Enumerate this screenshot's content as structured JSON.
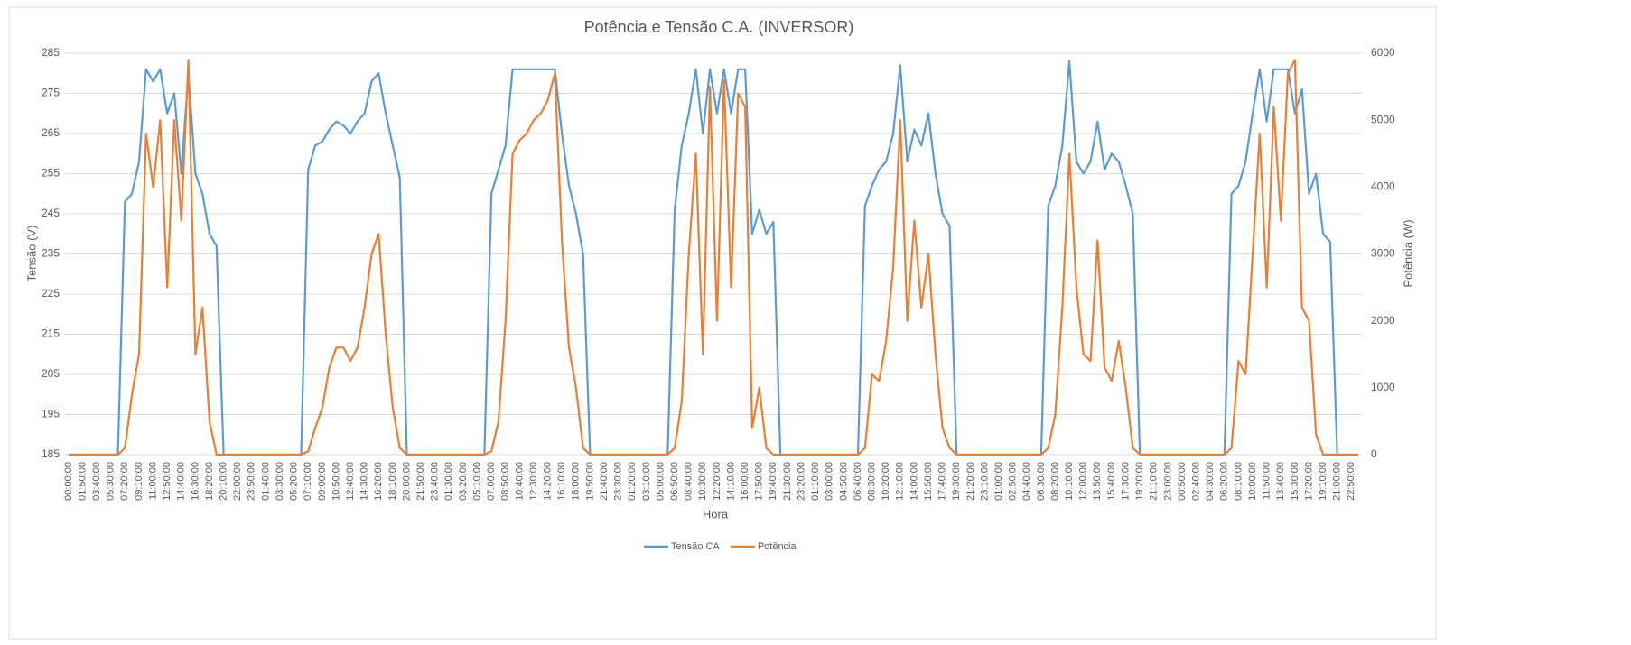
{
  "chart_data": {
    "type": "line",
    "title": "Potência e Tensão C.A. (INVERSOR)",
    "x_label": "Hora",
    "y_label": "Tensão (V)",
    "y2_label": "Potência (W)",
    "categories": [
      "00:00:00",
      null,
      "01:50:00",
      null,
      "03:40:00",
      null,
      "05:30:00",
      null,
      "07:20:00",
      null,
      "09:10:00",
      null,
      "11:00:00",
      null,
      "12:50:00",
      null,
      "14:40:00",
      null,
      "16:30:00",
      null,
      "18:20:00",
      null,
      "20:10:00",
      null,
      "22:00:00",
      null,
      "23:50:00",
      null,
      "01:40:00",
      null,
      "03:30:00",
      null,
      "05:20:00",
      null,
      "07:10:00",
      null,
      "09:00:00",
      null,
      "10:50:00",
      null,
      "12:40:00",
      null,
      "14:30:00",
      null,
      "16:20:00",
      null,
      "18:10:00",
      null,
      "20:00:00",
      null,
      "21:50:00",
      null,
      "23:40:00",
      null,
      "01:30:00",
      null,
      "03:20:00",
      null,
      "05:10:00",
      null,
      "07:00:00",
      null,
      "08:50:00",
      null,
      "10:40:00",
      null,
      "12:30:00",
      null,
      "14:20:00",
      null,
      "16:10:00",
      null,
      "18:00:00",
      null,
      "19:50:00",
      null,
      "21:40:00",
      null,
      "23:30:00",
      null,
      "01:20:00",
      null,
      "03:10:00",
      null,
      "05:00:00",
      null,
      "06:50:00",
      null,
      "08:40:00",
      null,
      "10:30:00",
      null,
      "12:20:00",
      null,
      "14:10:00",
      null,
      "16:00:00",
      null,
      "17:50:00",
      null,
      "19:40:00",
      null,
      "21:30:00",
      null,
      "23:20:00",
      null,
      "01:10:00",
      null,
      "03:00:00",
      null,
      "04:50:00",
      null,
      "06:40:00",
      null,
      "08:30:00",
      null,
      "10:20:00",
      null,
      "12:10:00",
      null,
      "14:00:00",
      null,
      "15:50:00",
      null,
      "17:40:00",
      null,
      "19:30:00",
      null,
      "21:20:00",
      null,
      "23:10:00",
      null,
      "01:00:00",
      null,
      "02:50:00",
      null,
      "04:40:00",
      null,
      "06:30:00",
      null,
      "08:20:00",
      null,
      "10:10:00",
      null,
      "12:00:00",
      null,
      "13:50:00",
      null,
      "15:40:00",
      null,
      "17:30:00",
      null,
      "19:20:00",
      null,
      "21:10:00",
      null,
      "23:00:00",
      null,
      "00:50:00",
      null,
      "02:40:00",
      null,
      "04:30:00",
      null,
      "06:20:00",
      null,
      "08:10:00",
      null,
      "10:00:00",
      null,
      "11:50:00",
      null,
      "13:40:00",
      null,
      "15:30:00",
      null,
      "17:20:00",
      null,
      "19:10:00",
      null,
      "21:00:00",
      null,
      "22:50:00",
      null
    ],
    "series": [
      {
        "name": "Tensão CA",
        "color": "#5b9bd5",
        "values": [
          185,
          185,
          185,
          185,
          185,
          185,
          185,
          185,
          248,
          250,
          258,
          281,
          278,
          281,
          270,
          275,
          255,
          280,
          255,
          250,
          240,
          237,
          185,
          185,
          185,
          185,
          185,
          185,
          185,
          185,
          185,
          185,
          185,
          185,
          256,
          262,
          263,
          266,
          268,
          267,
          265,
          268,
          270,
          278,
          280,
          270,
          262,
          254,
          185,
          185,
          185,
          185,
          185,
          185,
          185,
          185,
          185,
          185,
          185,
          185,
          250,
          256,
          262,
          281,
          281,
          281,
          281,
          281,
          281,
          281,
          265,
          252,
          245,
          235,
          185,
          185,
          185,
          185,
          185,
          185,
          185,
          185,
          185,
          185,
          185,
          185,
          246,
          262,
          270,
          281,
          265,
          281,
          270,
          281,
          270,
          281,
          281,
          240,
          246,
          240,
          243,
          185,
          185,
          185,
          185,
          185,
          185,
          185,
          185,
          185,
          185,
          185,
          185,
          247,
          252,
          256,
          258,
          265,
          282,
          258,
          266,
          262,
          270,
          255,
          245,
          242,
          185,
          185,
          185,
          185,
          185,
          185,
          185,
          185,
          185,
          185,
          185,
          185,
          185,
          247,
          252,
          262,
          283,
          258,
          255,
          258,
          268,
          256,
          260,
          258,
          252,
          245,
          185,
          185,
          185,
          185,
          185,
          185,
          185,
          185,
          185,
          185,
          185,
          185,
          185,
          250,
          252,
          258,
          270,
          281,
          268,
          281,
          281,
          281,
          270,
          276,
          250,
          255,
          240,
          238,
          185,
          185,
          185,
          185
        ]
      },
      {
        "name": "Potência",
        "color": "#ed7d31",
        "axis": "y2",
        "values": [
          0,
          0,
          0,
          0,
          0,
          0,
          0,
          0,
          100,
          900,
          1500,
          4800,
          4000,
          5000,
          2500,
          5000,
          3500,
          5900,
          1500,
          2200,
          500,
          0,
          0,
          0,
          0,
          0,
          0,
          0,
          0,
          0,
          0,
          0,
          0,
          0,
          50,
          400,
          700,
          1300,
          1600,
          1600,
          1400,
          1600,
          2200,
          3000,
          3300,
          1800,
          700,
          100,
          0,
          0,
          0,
          0,
          0,
          0,
          0,
          0,
          0,
          0,
          0,
          0,
          50,
          500,
          2000,
          4500,
          4700,
          4800,
          5000,
          5100,
          5300,
          5700,
          3200,
          1600,
          1000,
          100,
          0,
          0,
          0,
          0,
          0,
          0,
          0,
          0,
          0,
          0,
          0,
          0,
          100,
          800,
          3000,
          4500,
          1500,
          5500,
          2000,
          5600,
          2500,
          5400,
          5200,
          400,
          1000,
          100,
          0,
          0,
          0,
          0,
          0,
          0,
          0,
          0,
          0,
          0,
          0,
          0,
          0,
          100,
          1200,
          1100,
          1700,
          2800,
          5000,
          2000,
          3500,
          2200,
          3000,
          1500,
          400,
          100,
          0,
          0,
          0,
          0,
          0,
          0,
          0,
          0,
          0,
          0,
          0,
          0,
          0,
          100,
          600,
          2200,
          4500,
          2500,
          1500,
          1400,
          3200,
          1300,
          1100,
          1700,
          1000,
          100,
          0,
          0,
          0,
          0,
          0,
          0,
          0,
          0,
          0,
          0,
          0,
          0,
          0,
          100,
          1400,
          1200,
          3000,
          4800,
          2500,
          5200,
          3500,
          5700,
          5900,
          2200,
          2000,
          300,
          0,
          0,
          0,
          0,
          0,
          0
        ]
      }
    ],
    "ylim": [
      185,
      285
    ],
    "yticks": [
      185,
      195,
      205,
      215,
      225,
      235,
      245,
      255,
      265,
      275,
      285
    ],
    "y2lim": [
      0,
      6000
    ],
    "y2ticks": [
      0,
      1000,
      2000,
      3000,
      4000,
      5000,
      6000
    ],
    "grid": true,
    "legend": "bottom"
  }
}
